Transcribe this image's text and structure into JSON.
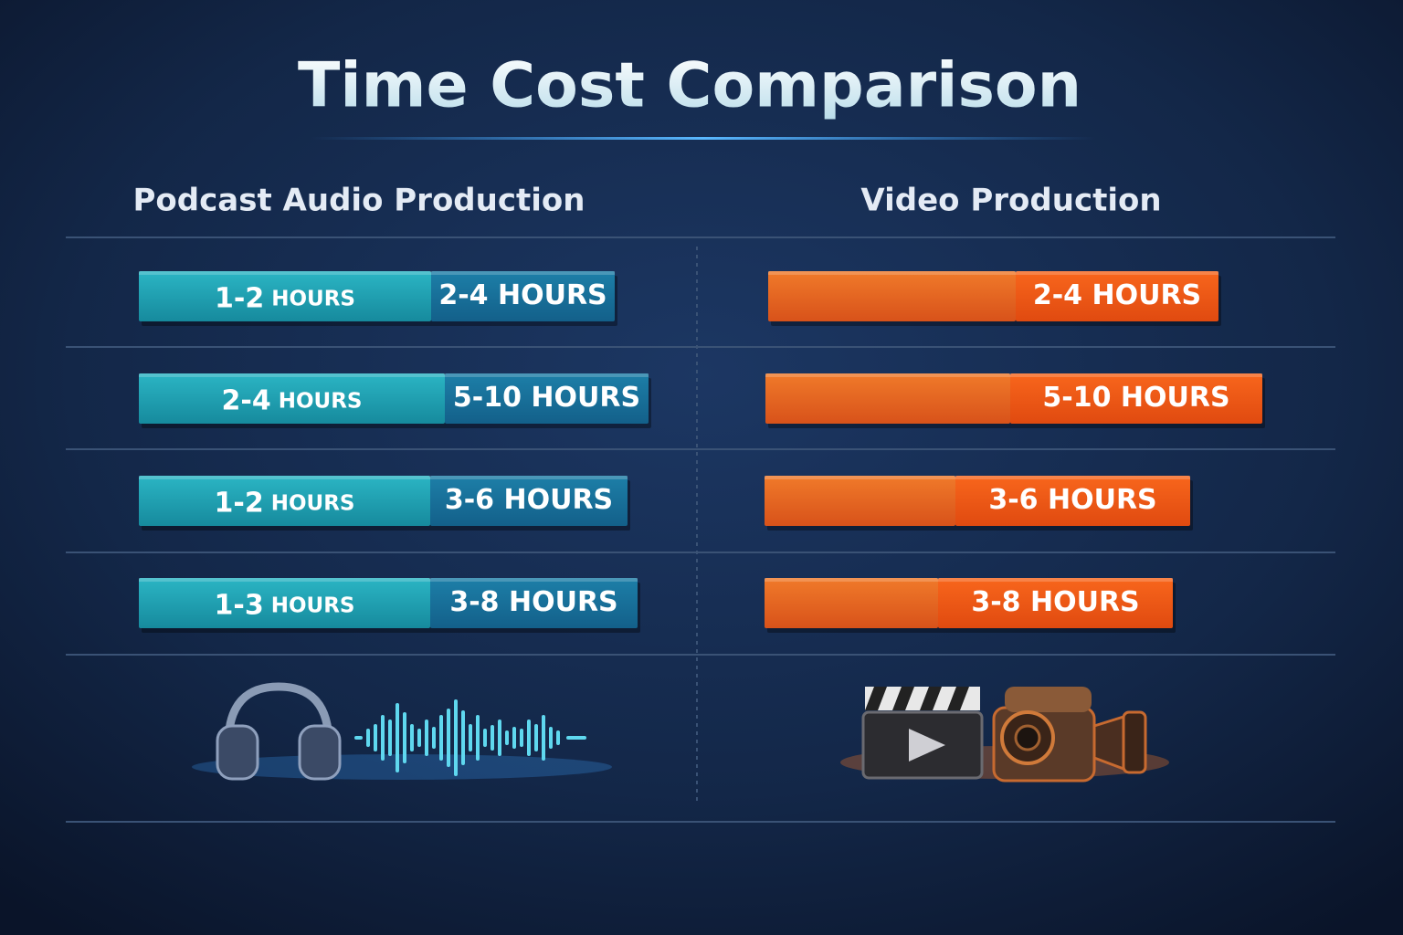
{
  "title": "Time Cost Comparison",
  "columns": [
    {
      "heading": "Podcast Audio Production",
      "rows": [
        [
          "1-2 HOURS",
          "2-4 HOURS"
        ],
        [
          "2-4 HOURS",
          "5-10 HOURS"
        ],
        [
          "1-2 HOURS",
          "3-6 HOURS"
        ],
        [
          "1-3 HOURS",
          "3-8 HOURS"
        ]
      ]
    },
    {
      "heading": "Video Production",
      "rows": [
        [
          "2-4 HOURS"
        ],
        [
          "5-10 HOURS"
        ],
        [
          "3-6 HOURS"
        ],
        [
          "3-8 HOURS"
        ]
      ]
    }
  ]
}
